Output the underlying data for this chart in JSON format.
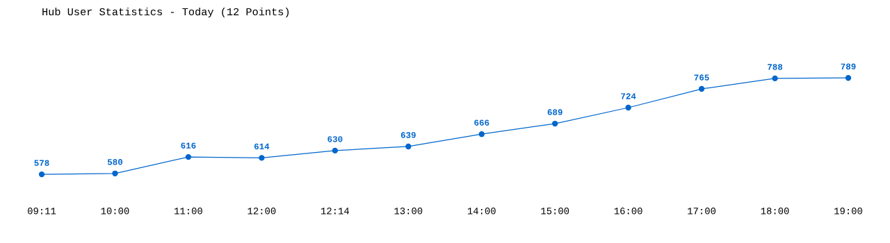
{
  "chart_data": {
    "type": "line",
    "title": "Hub User Statistics - Today (12 Points)",
    "categories": [
      "09:11",
      "10:00",
      "11:00",
      "12:00",
      "12:14",
      "13:00",
      "14:00",
      "15:00",
      "16:00",
      "17:00",
      "18:00",
      "19:00"
    ],
    "series": [
      {
        "color": "#0066cc",
        "values": [
          578,
          580,
          616,
          614,
          630,
          639,
          666,
          689,
          724,
          765,
          788,
          789
        ]
      }
    ],
    "data_labels": true,
    "marker": "circle",
    "line_style": "solid",
    "grid": false,
    "legend": false,
    "tick_labels": "x"
  }
}
